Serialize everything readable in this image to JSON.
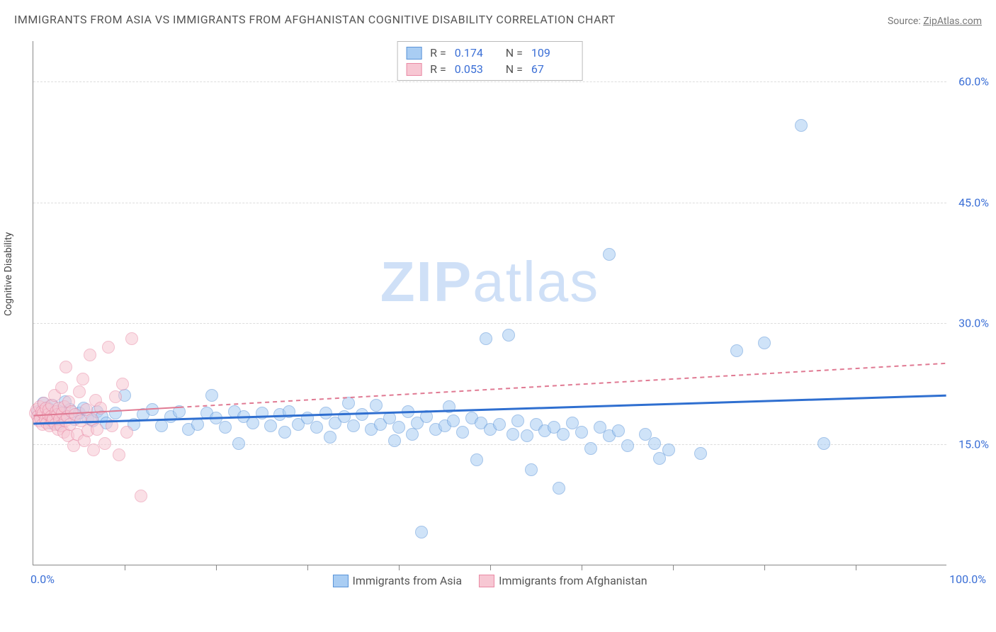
{
  "title": "IMMIGRANTS FROM ASIA VS IMMIGRANTS FROM AFGHANISTAN COGNITIVE DISABILITY CORRELATION CHART",
  "source_prefix": "Source: ",
  "source_name": "ZipAtlas.com",
  "ylabel": "Cognitive Disability",
  "watermark_bold": "ZIP",
  "watermark_light": "atlas",
  "chart": {
    "type": "scatter",
    "xlim": [
      0,
      100
    ],
    "ylim": [
      0,
      65
    ],
    "yticks": [
      15,
      30,
      45,
      60
    ],
    "ytick_labels": [
      "15.0%",
      "30.0%",
      "45.0%",
      "60.0%"
    ],
    "xticks": [
      10,
      20,
      30,
      40,
      50,
      60,
      70,
      80,
      90
    ],
    "xaxis_left_label": "0.0%",
    "xaxis_right_label": "100.0%",
    "background_color": "#ffffff",
    "grid_color": "#dddddd",
    "axis_color": "#888888",
    "tick_label_color": "#3b6fd6",
    "point_radius": 9,
    "point_opacity": 0.55,
    "series": [
      {
        "name": "Immigrants from Asia",
        "fill": "#a9cdf3",
        "stroke": "#5a94d8",
        "reg_color": "#2f6fd0",
        "reg_dash": "none",
        "reg_width": 3,
        "R": "0.174",
        "N": "109",
        "reg_line": {
          "x1": 0,
          "y1": 17.5,
          "x2": 100,
          "y2": 21.0
        },
        "points": [
          [
            0.5,
            19.0
          ],
          [
            0.8,
            18.4
          ],
          [
            1.1,
            20.0
          ],
          [
            1.3,
            18.8
          ],
          [
            1.6,
            19.4
          ],
          [
            1.9,
            17.6
          ],
          [
            2.1,
            19.8
          ],
          [
            2.4,
            18.2
          ],
          [
            2.7,
            17.4
          ],
          [
            3.0,
            19.0
          ],
          [
            3.3,
            18.6
          ],
          [
            3.5,
            20.2
          ],
          [
            4.0,
            19.2
          ],
          [
            4.5,
            18.0
          ],
          [
            5.0,
            18.8
          ],
          [
            5.5,
            19.4
          ],
          [
            6.0,
            18.2
          ],
          [
            6.5,
            17.8
          ],
          [
            7.0,
            19.0
          ],
          [
            7.5,
            18.4
          ],
          [
            8.0,
            17.6
          ],
          [
            9.0,
            18.8
          ],
          [
            10.0,
            21.0
          ],
          [
            11.0,
            17.4
          ],
          [
            12.0,
            18.6
          ],
          [
            13.0,
            19.2
          ],
          [
            14.0,
            17.2
          ],
          [
            15.0,
            18.4
          ],
          [
            16.0,
            19.0
          ],
          [
            17.0,
            16.8
          ],
          [
            18.0,
            17.4
          ],
          [
            19.0,
            18.8
          ],
          [
            19.5,
            21.0
          ],
          [
            20.0,
            18.2
          ],
          [
            21.0,
            17.0
          ],
          [
            22.0,
            19.0
          ],
          [
            22.5,
            15.0
          ],
          [
            23.0,
            18.4
          ],
          [
            24.0,
            17.6
          ],
          [
            25.0,
            18.8
          ],
          [
            26.0,
            17.2
          ],
          [
            27.0,
            18.6
          ],
          [
            27.5,
            16.4
          ],
          [
            28.0,
            19.0
          ],
          [
            29.0,
            17.4
          ],
          [
            30.0,
            18.2
          ],
          [
            31.0,
            17.0
          ],
          [
            32.0,
            18.8
          ],
          [
            32.5,
            15.8
          ],
          [
            33.0,
            17.6
          ],
          [
            34.0,
            18.4
          ],
          [
            34.5,
            20.0
          ],
          [
            35.0,
            17.2
          ],
          [
            36.0,
            18.6
          ],
          [
            37.0,
            16.8
          ],
          [
            37.5,
            19.8
          ],
          [
            38.0,
            17.4
          ],
          [
            39.0,
            18.2
          ],
          [
            39.5,
            15.4
          ],
          [
            40.0,
            17.0
          ],
          [
            41.0,
            19.0
          ],
          [
            41.5,
            16.2
          ],
          [
            42.0,
            17.6
          ],
          [
            42.5,
            4.0
          ],
          [
            43.0,
            18.4
          ],
          [
            44.0,
            16.8
          ],
          [
            45.0,
            17.2
          ],
          [
            45.5,
            19.6
          ],
          [
            46.0,
            17.8
          ],
          [
            47.0,
            16.4
          ],
          [
            48.0,
            18.2
          ],
          [
            48.5,
            13.0
          ],
          [
            49.0,
            17.6
          ],
          [
            49.5,
            28.0
          ],
          [
            50.0,
            16.8
          ],
          [
            51.0,
            17.4
          ],
          [
            52.0,
            28.5
          ],
          [
            52.5,
            16.2
          ],
          [
            53.0,
            17.8
          ],
          [
            54.0,
            16.0
          ],
          [
            54.5,
            11.8
          ],
          [
            55.0,
            17.4
          ],
          [
            56.0,
            16.6
          ],
          [
            57.0,
            17.0
          ],
          [
            57.5,
            9.5
          ],
          [
            58.0,
            16.2
          ],
          [
            59.0,
            17.6
          ],
          [
            60.0,
            16.4
          ],
          [
            61.0,
            14.4
          ],
          [
            62.0,
            17.0
          ],
          [
            63.0,
            16.0
          ],
          [
            63.0,
            38.5
          ],
          [
            64.0,
            16.6
          ],
          [
            65.0,
            14.8
          ],
          [
            67.0,
            16.2
          ],
          [
            68.0,
            15.0
          ],
          [
            68.5,
            13.2
          ],
          [
            69.5,
            14.2
          ],
          [
            73.0,
            13.8
          ],
          [
            77.0,
            26.5
          ],
          [
            80.0,
            27.5
          ],
          [
            84.0,
            54.5
          ],
          [
            86.5,
            15.0
          ]
        ]
      },
      {
        "name": "Immigrants from Afghanistan",
        "fill": "#f7c7d3",
        "stroke": "#e98aa5",
        "reg_color": "#e07a93",
        "reg_dash": "6,5",
        "reg_width": 2,
        "R": "0.053",
        "N": "67",
        "reg_line": {
          "x1": 0,
          "y1": 18.5,
          "x2": 100,
          "y2": 25.0
        },
        "reg_line_solid_end": 16,
        "points": [
          [
            0.2,
            18.8
          ],
          [
            0.4,
            19.2
          ],
          [
            0.5,
            18.4
          ],
          [
            0.6,
            17.8
          ],
          [
            0.7,
            19.6
          ],
          [
            0.8,
            18.2
          ],
          [
            0.9,
            19.0
          ],
          [
            1.0,
            17.4
          ],
          [
            1.1,
            18.8
          ],
          [
            1.2,
            20.0
          ],
          [
            1.3,
            18.0
          ],
          [
            1.4,
            19.4
          ],
          [
            1.5,
            17.6
          ],
          [
            1.6,
            18.6
          ],
          [
            1.7,
            19.2
          ],
          [
            1.8,
            17.2
          ],
          [
            1.9,
            18.4
          ],
          [
            2.0,
            19.8
          ],
          [
            2.1,
            17.8
          ],
          [
            2.2,
            18.2
          ],
          [
            2.3,
            21.0
          ],
          [
            2.4,
            17.4
          ],
          [
            2.5,
            19.0
          ],
          [
            2.6,
            18.6
          ],
          [
            2.7,
            16.8
          ],
          [
            2.8,
            19.4
          ],
          [
            2.9,
            18.0
          ],
          [
            3.0,
            17.2
          ],
          [
            3.1,
            22.0
          ],
          [
            3.2,
            18.8
          ],
          [
            3.3,
            16.4
          ],
          [
            3.4,
            19.6
          ],
          [
            3.5,
            17.8
          ],
          [
            3.6,
            24.5
          ],
          [
            3.7,
            18.4
          ],
          [
            3.8,
            16.0
          ],
          [
            3.9,
            20.2
          ],
          [
            4.0,
            17.4
          ],
          [
            4.2,
            19.0
          ],
          [
            4.4,
            14.8
          ],
          [
            4.6,
            18.6
          ],
          [
            4.8,
            16.2
          ],
          [
            5.0,
            21.4
          ],
          [
            5.2,
            17.8
          ],
          [
            5.4,
            23.0
          ],
          [
            5.6,
            15.4
          ],
          [
            5.8,
            19.2
          ],
          [
            6.0,
            16.6
          ],
          [
            6.2,
            26.0
          ],
          [
            6.4,
            18.0
          ],
          [
            6.6,
            14.2
          ],
          [
            6.8,
            20.4
          ],
          [
            7.0,
            16.8
          ],
          [
            7.4,
            19.4
          ],
          [
            7.8,
            15.0
          ],
          [
            8.2,
            27.0
          ],
          [
            8.6,
            17.2
          ],
          [
            9.0,
            20.8
          ],
          [
            9.4,
            13.6
          ],
          [
            9.8,
            22.4
          ],
          [
            10.2,
            16.4
          ],
          [
            10.8,
            28.0
          ],
          [
            11.8,
            8.5
          ]
        ]
      }
    ]
  },
  "legend_top": {
    "R_label": "R =",
    "N_label": "N ="
  }
}
